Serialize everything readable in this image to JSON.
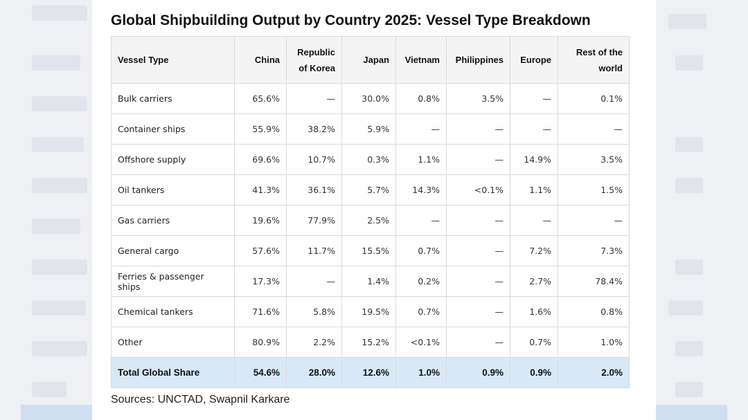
{
  "chart_data": {
    "type": "table",
    "title": "Global Shipbuilding Output by Country 2025: Vessel Type Breakdown",
    "columns": [
      "Vessel Type",
      "China",
      "Republic of Korea",
      "Japan",
      "Vietnam",
      "Philippines",
      "Europe",
      "Rest of the world"
    ],
    "rows": [
      [
        "Bulk carriers",
        "65.6%",
        "—",
        "30.0%",
        "0.8%",
        "3.5%",
        "—",
        "0.1%"
      ],
      [
        "Container ships",
        "55.9%",
        "38.2%",
        "5.9%",
        "—",
        "—",
        "—",
        "—"
      ],
      [
        "Offshore supply",
        "69.6%",
        "10.7%",
        "0.3%",
        "1.1%",
        "—",
        "14.9%",
        "3.5%"
      ],
      [
        "Oil tankers",
        "41.3%",
        "36.1%",
        "5.7%",
        "14.3%",
        "<0.1%",
        "1.1%",
        "1.5%"
      ],
      [
        "Gas carriers",
        "19.6%",
        "77.9%",
        "2.5%",
        "—",
        "—",
        "—",
        "—"
      ],
      [
        "General cargo",
        "57.6%",
        "11.7%",
        "15.5%",
        "0.7%",
        "—",
        "7.2%",
        "7.3%"
      ],
      [
        "Ferries & passenger ships",
        "17.3%",
        "—",
        "1.4%",
        "0.2%",
        "—",
        "2.7%",
        "78.4%"
      ],
      [
        "Chemical tankers",
        "71.6%",
        "5.8%",
        "19.5%",
        "0.7%",
        "—",
        "1.6%",
        "0.8%"
      ],
      [
        "Other",
        "80.9%",
        "2.2%",
        "15.2%",
        "<0.1%",
        "—",
        "0.7%",
        "1.0%"
      ]
    ],
    "total_row": [
      "Total Global Share",
      "54.6%",
      "28.0%",
      "12.6%",
      "1.0%",
      "0.9%",
      "0.9%",
      "2.0%"
    ],
    "source": "Sources: UNCTAD, Swapnil Karkare"
  }
}
